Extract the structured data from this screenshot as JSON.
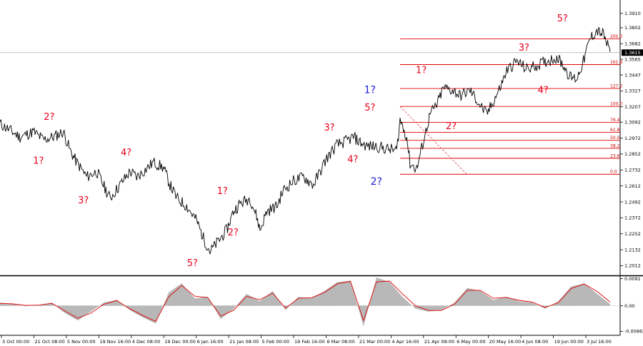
{
  "chart_data": {
    "type": "line",
    "title": "",
    "price_axis": {
      "min": 1.195,
      "max": 1.4,
      "ticks": [
        "1.3910",
        "1.3802",
        "1.3682",
        "1.3565",
        "1.3447",
        "1.3327",
        "1.3207",
        "1.3092",
        "1.2972",
        "1.2852",
        "1.2732",
        "1.2612",
        "1.2492",
        "1.2372",
        "1.2252",
        "1.2132",
        "1.2012"
      ]
    },
    "current_price": "1.3615",
    "current_price_value": 1.3615,
    "x_axis": {
      "ticks": [
        "3 Oct 00:00",
        "21 Oct 08:00",
        "5 Nov 00:00",
        "19 Nov 16:00",
        "4 Dec 08:00",
        "19 Dec 00:00",
        "6 Jan 16:00",
        "21 Jan 08:00",
        "5 Feb 00:00",
        "19 Feb 16:00",
        "6 Mar 08:00",
        "21 Mar 00:00",
        "4 Apr 16:00",
        "21 Apr 08:00",
        "6 May 00:00",
        "20 May 16:00",
        "4 Jun 08:00",
        "19 Jun 00:00",
        "3 Jul 16:00"
      ],
      "tick_positions": [
        0,
        1,
        2,
        3,
        4,
        5,
        6,
        7,
        8,
        9,
        10,
        11,
        12,
        13,
        14,
        15,
        16,
        17,
        18
      ]
    },
    "price_series": [
      [
        0.0,
        1.308
      ],
      [
        0.3,
        1.303
      ],
      [
        0.6,
        1.298
      ],
      [
        1.0,
        1.302
      ],
      [
        1.3,
        1.296
      ],
      [
        1.6,
        1.298
      ],
      [
        1.9,
        1.302
      ],
      [
        2.1,
        1.288
      ],
      [
        2.3,
        1.279
      ],
      [
        2.6,
        1.268
      ],
      [
        2.9,
        1.272
      ],
      [
        3.1,
        1.262
      ],
      [
        3.3,
        1.252
      ],
      [
        3.6,
        1.262
      ],
      [
        3.9,
        1.272
      ],
      [
        4.1,
        1.268
      ],
      [
        4.3,
        1.272
      ],
      [
        4.6,
        1.279
      ],
      [
        4.9,
        1.275
      ],
      [
        5.1,
        1.262
      ],
      [
        5.3,
        1.252
      ],
      [
        5.6,
        1.246
      ],
      [
        5.9,
        1.235
      ],
      [
        6.1,
        1.222
      ],
      [
        6.3,
        1.212
      ],
      [
        6.5,
        1.218
      ],
      [
        6.8,
        1.228
      ],
      [
        7.0,
        1.242
      ],
      [
        7.2,
        1.248
      ],
      [
        7.5,
        1.252
      ],
      [
        7.7,
        1.238
      ],
      [
        7.8,
        1.228
      ],
      [
        8.0,
        1.242
      ],
      [
        8.3,
        1.246
      ],
      [
        8.5,
        1.258
      ],
      [
        8.8,
        1.265
      ],
      [
        9.1,
        1.268
      ],
      [
        9.4,
        1.262
      ],
      [
        9.6,
        1.272
      ],
      [
        9.8,
        1.282
      ],
      [
        10.1,
        1.292
      ],
      [
        10.4,
        1.295
      ],
      [
        10.6,
        1.298
      ],
      [
        10.8,
        1.294
      ],
      [
        11.0,
        1.291
      ],
      [
        11.3,
        1.291
      ],
      [
        11.6,
        1.289
      ],
      [
        11.9,
        1.288
      ],
      [
        12.0,
        1.311
      ],
      [
        12.2,
        1.298
      ],
      [
        12.3,
        1.278
      ],
      [
        12.5,
        1.274
      ],
      [
        12.7,
        1.295
      ],
      [
        12.9,
        1.315
      ],
      [
        13.1,
        1.322
      ],
      [
        13.3,
        1.335
      ],
      [
        13.6,
        1.333
      ],
      [
        13.8,
        1.329
      ],
      [
        14.1,
        1.333
      ],
      [
        14.4,
        1.322
      ],
      [
        14.6,
        1.315
      ],
      [
        14.8,
        1.325
      ],
      [
        15.0,
        1.335
      ],
      [
        15.2,
        1.348
      ],
      [
        15.5,
        1.355
      ],
      [
        15.8,
        1.349
      ],
      [
        16.1,
        1.352
      ],
      [
        16.4,
        1.355
      ],
      [
        16.7,
        1.358
      ],
      [
        16.9,
        1.352
      ],
      [
        17.1,
        1.343
      ],
      [
        17.3,
        1.342
      ],
      [
        17.5,
        1.355
      ],
      [
        17.7,
        1.372
      ],
      [
        17.9,
        1.378
      ],
      [
        18.1,
        1.375
      ],
      [
        18.2,
        1.368
      ],
      [
        18.3,
        1.362
      ]
    ],
    "oscillator": {
      "ticks": [
        "0.0091",
        "0.00",
        "-0.00862"
      ],
      "min": -0.0095,
      "max": 0.0095,
      "histogram": [
        0.001,
        0.0005,
        -0.0002,
        0.0003,
        0.001,
        -0.0025,
        -0.005,
        -0.002,
        0.001,
        0.002,
        -0.0015,
        -0.004,
        -0.006,
        0.0045,
        0.0075,
        0.0025,
        0.003,
        -0.0045,
        -0.001,
        0.004,
        0.0015,
        0.005,
        -0.0015,
        0.003,
        0.0025,
        0.005,
        0.008,
        0.0085,
        -0.007,
        0.0095,
        0.008,
        0.003,
        -0.001,
        -0.002,
        -0.0015,
        0.001,
        0.006,
        0.005,
        0.002,
        0.003,
        0.0015,
        0.001,
        -0.001,
        0.0015,
        0.0065,
        0.0075,
        0.004,
        0.0005
      ],
      "signal": [
        0.0008,
        0.0006,
        0.0001,
        0.0002,
        0.0008,
        -0.0018,
        -0.0042,
        -0.0025,
        0.0005,
        0.0017,
        -0.001,
        -0.0033,
        -0.0053,
        0.003,
        0.0068,
        0.0032,
        0.0028,
        -0.0035,
        -0.0015,
        0.0032,
        0.002,
        0.0042,
        -0.0008,
        0.0025,
        0.0027,
        0.0045,
        0.0074,
        0.0082,
        -0.005,
        0.008,
        0.0083,
        0.004,
        0.0,
        -0.0016,
        -0.0016,
        0.0005,
        0.0052,
        0.0052,
        0.0025,
        0.0028,
        0.0018,
        0.0012,
        -0.0006,
        0.001,
        0.0058,
        0.0073,
        0.0048,
        0.0012
      ],
      "x_start": 0.0,
      "x_end": 18.3
    },
    "fibonacci": {
      "levels": [
        {
          "label": "0.0",
          "price": 1.27
        },
        {
          "label": "23.6",
          "price": 1.282
        },
        {
          "label": "38.2",
          "price": 1.2895
        },
        {
          "label": "50.0",
          "price": 1.2955
        },
        {
          "label": "61.8",
          "price": 1.3015
        },
        {
          "label": "76.4",
          "price": 1.309
        },
        {
          "label": "100.0",
          "price": 1.321
        },
        {
          "label": "127.2",
          "price": 1.3345
        },
        {
          "label": "161.8",
          "price": 1.3525
        },
        {
          "label": "200.0",
          "price": 1.3718
        }
      ],
      "x_start": 12.0,
      "x_end": 18.6
    },
    "trend_line": {
      "x1": 12.0,
      "y1": 1.321,
      "x2": 14.0,
      "y2": 1.27
    },
    "wave_labels": [
      {
        "text": "2?",
        "x": 2.3,
        "price": 1.311,
        "color": "red"
      },
      {
        "text": "1?",
        "x": 1.8,
        "price": 1.278,
        "color": "red"
      },
      {
        "text": "3?",
        "x": 3.9,
        "price": 1.248,
        "color": "red"
      },
      {
        "text": "4?",
        "x": 5.9,
        "price": 1.284,
        "color": "red"
      },
      {
        "text": "5?",
        "x": 9.0,
        "price": 1.201,
        "color": "red"
      },
      {
        "text": "1?",
        "x": 10.4,
        "price": 1.255,
        "color": "red"
      },
      {
        "text": "2?",
        "x": 10.9,
        "price": 1.224,
        "color": "red"
      },
      {
        "text": "3?",
        "x": 15.4,
        "price": 1.303,
        "color": "red"
      },
      {
        "text": "4?",
        "x": 16.5,
        "price": 1.279,
        "color": "red"
      },
      {
        "text": "5?",
        "x": 17.3,
        "price": 1.318,
        "color": "red"
      },
      {
        "text": "1?",
        "x": 17.3,
        "price": 1.331,
        "color": "blue"
      },
      {
        "text": "2?",
        "x": 17.6,
        "price": 1.262,
        "color": "blue"
      },
      {
        "text": "1?",
        "x": 19.7,
        "price": 1.346,
        "color": "red"
      },
      {
        "text": "2?",
        "x": 21.1,
        "price": 1.304,
        "color": "red"
      },
      {
        "text": "3?",
        "x": 24.5,
        "price": 1.363,
        "color": "red"
      },
      {
        "text": "4?",
        "x": 25.4,
        "price": 1.331,
        "color": "red"
      },
      {
        "text": "5?",
        "x": 26.3,
        "price": 1.385,
        "color": "red"
      }
    ]
  }
}
